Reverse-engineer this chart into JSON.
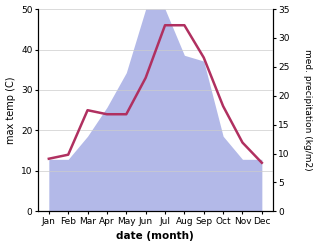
{
  "months": [
    "Jan",
    "Feb",
    "Mar",
    "Apr",
    "May",
    "Jun",
    "Jul",
    "Aug",
    "Sep",
    "Oct",
    "Nov",
    "Dec"
  ],
  "temp": [
    13,
    14,
    25,
    24,
    24,
    33,
    46,
    46,
    38,
    26,
    17,
    12
  ],
  "precip": [
    9,
    9,
    13,
    18,
    24,
    35,
    35,
    27,
    26,
    13,
    9,
    9
  ],
  "temp_color": "#b03060",
  "precip_color": "#b3b9e8",
  "ylabel_left": "max temp (C)",
  "ylabel_right": "med. precipitation (kg/m2)",
  "xlabel": "date (month)",
  "ylim_left": [
    0,
    50
  ],
  "ylim_right": [
    0,
    35
  ],
  "yticks_left": [
    0,
    10,
    20,
    30,
    40,
    50
  ],
  "yticks_right": [
    0,
    5,
    10,
    15,
    20,
    25,
    30,
    35
  ],
  "bg_color": "#ffffff",
  "line_width": 1.8
}
